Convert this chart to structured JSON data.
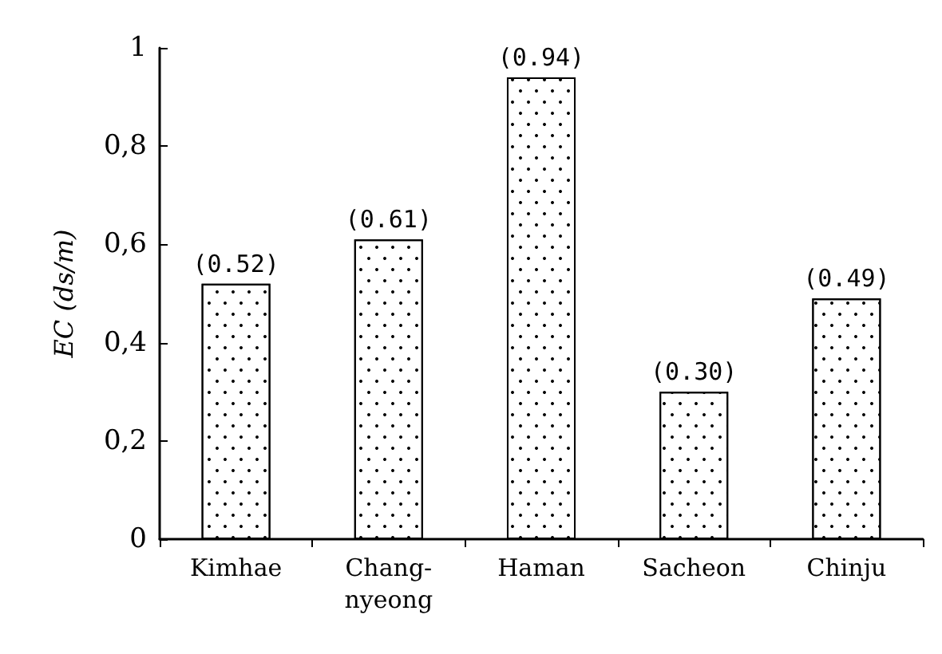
{
  "chart_data": {
    "type": "bar",
    "ylabel": "EC (ds/m)",
    "categories": [
      "Kimhae",
      "Chang-\nnyeong",
      "Haman",
      "Sacheon",
      "Chinju"
    ],
    "values": [
      0.52,
      0.61,
      0.94,
      0.3,
      0.49
    ],
    "value_labels": [
      "(0.52)",
      "(0.61)",
      "(0.94)",
      "(0.30)",
      "(0.49)"
    ],
    "color": "#ffffff",
    "ylim": [
      0,
      1
    ],
    "yticks": [
      0,
      {
        "value": 0.2,
        "label": "0,2"
      },
      {
        "value": 0.4,
        "label": "0,4"
      },
      {
        "value": 0.6,
        "label": "0,6"
      },
      {
        "value": 0.8,
        "label": "0,8"
      },
      1
    ],
    "grid": false
  }
}
